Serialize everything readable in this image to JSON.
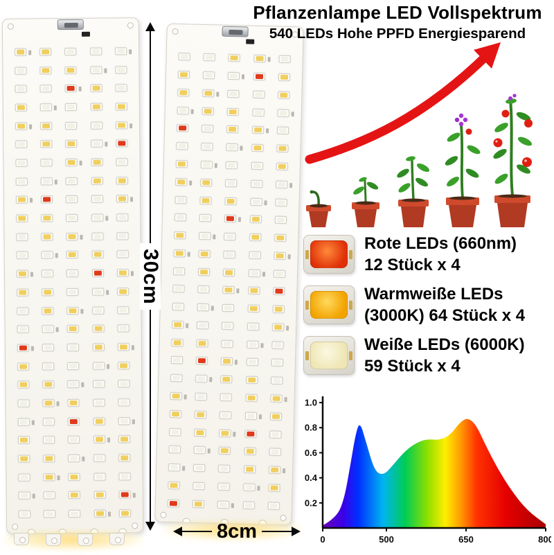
{
  "title": {
    "line1": "Pflanzenlampe LED Vollspektrum",
    "line2": "540 LEDs Hohe PPFD Energiesparend"
  },
  "dimensions": {
    "height": "30cm",
    "width": "8cm"
  },
  "legend": {
    "items": [
      {
        "name": "red-led",
        "line1": "Rote LEDs (660nm)",
        "line2": "12 Stück x 4",
        "chip_inner": "#e03008",
        "chip_glow": "#ff8a3a"
      },
      {
        "name": "warm-led",
        "line1": "Warmweiße LEDs",
        "line2": "(3000K) 64 Stück x 4",
        "chip_inner": "#f2a300",
        "chip_glow": "#ffd95e"
      },
      {
        "name": "white-led",
        "line1": "Weiße LEDs (6000K)",
        "line2": "59 Stück x 4",
        "chip_inner": "#efe6b4",
        "chip_glow": "#fbf8e2"
      }
    ]
  },
  "panels": {
    "rows": 26,
    "cols": 5,
    "led_colors": {
      "white": "#f2f1e6",
      "warm": "#f0cf5e",
      "red": "#e03a1a"
    },
    "panel_list": [
      {
        "red_positions": [
          [
            2,
            2
          ],
          [
            5,
            4
          ],
          [
            8,
            1
          ],
          [
            12,
            3
          ],
          [
            16,
            0
          ],
          [
            20,
            2
          ],
          [
            24,
            4
          ]
        ]
      },
      {
        "red_positions": [
          [
            1,
            3
          ],
          [
            4,
            0
          ],
          [
            9,
            2
          ],
          [
            13,
            4
          ],
          [
            17,
            1
          ],
          [
            21,
            3
          ],
          [
            25,
            0
          ]
        ]
      }
    ]
  },
  "growth": {
    "stages": 5,
    "arrow_color": "#e51414",
    "pot_color": "#b03a22"
  },
  "chart_data": {
    "type": "area",
    "title": "",
    "xlabel": "",
    "ylabel": "",
    "grid": false,
    "legend_position": "none",
    "xlim": [
      380,
      800
    ],
    "ylim": [
      0,
      1.05
    ],
    "x_ticks": [
      {
        "label": "0",
        "wl": 380
      },
      {
        "label": "500",
        "wl": 500
      },
      {
        "label": "650",
        "wl": 650
      },
      {
        "label": "800",
        "wl": 800
      }
    ],
    "y_ticks": [
      "1.0",
      "0.8",
      "0.6",
      "0.4",
      "0.2"
    ],
    "series": [
      {
        "name": "spectrum",
        "x": [
          380,
          405,
          420,
          432,
          442,
          450,
          462,
          478,
          495,
          512,
          532,
          552,
          575,
          600,
          620,
          638,
          652,
          668,
          688,
          710,
          735,
          765,
          800
        ],
        "y": [
          0.02,
          0.08,
          0.22,
          0.5,
          0.75,
          0.85,
          0.68,
          0.45,
          0.42,
          0.5,
          0.6,
          0.67,
          0.71,
          0.7,
          0.74,
          0.84,
          0.88,
          0.83,
          0.65,
          0.47,
          0.3,
          0.14,
          0.03
        ]
      }
    ]
  }
}
